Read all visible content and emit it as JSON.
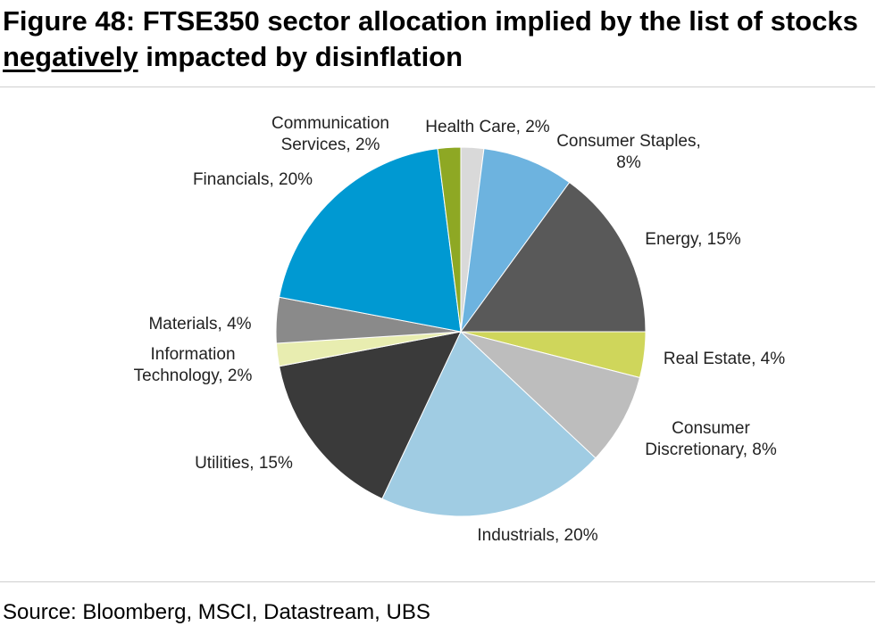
{
  "title": {
    "prefix": "Figure 48: FTSE350 sector allocation implied by the list of stocks ",
    "emphasis": "negatively",
    "suffix": " impacted by disinflation"
  },
  "source": "Source: Bloomberg, MSCI, Datastream, UBS",
  "chart_data": {
    "type": "pie",
    "start": "12 o'clock",
    "direction": "clockwise",
    "legend": "none",
    "slices": [
      {
        "label_lines": [
          "Health Care, 2%"
        ],
        "value": 2,
        "color": "#d9d9d9"
      },
      {
        "label_lines": [
          "Consumer Staples,",
          "8%"
        ],
        "value": 8,
        "color": "#6db3df"
      },
      {
        "label_lines": [
          "Energy, 15%"
        ],
        "value": 15,
        "color": "#595959"
      },
      {
        "label_lines": [
          "Real Estate, 4%"
        ],
        "value": 4,
        "color": "#cfd65b"
      },
      {
        "label_lines": [
          "Consumer",
          "Discretionary, 8%"
        ],
        "value": 8,
        "color": "#bdbdbd"
      },
      {
        "label_lines": [
          "Industrials, 20%"
        ],
        "value": 20,
        "color": "#a0cce3"
      },
      {
        "label_lines": [
          "Utilities, 15%"
        ],
        "value": 15,
        "color": "#3a3a3a"
      },
      {
        "label_lines": [
          "Information",
          "Technology, 2%"
        ],
        "value": 2,
        "color": "#e8edb0"
      },
      {
        "label_lines": [
          "Materials, 4%"
        ],
        "value": 4,
        "color": "#8a8a8a"
      },
      {
        "label_lines": [
          "Financials, 20%"
        ],
        "value": 20,
        "color": "#0099d2"
      },
      {
        "label_lines": [
          "Communication",
          "Services, 2%"
        ],
        "value": 2,
        "color": "#8ea824"
      }
    ]
  }
}
